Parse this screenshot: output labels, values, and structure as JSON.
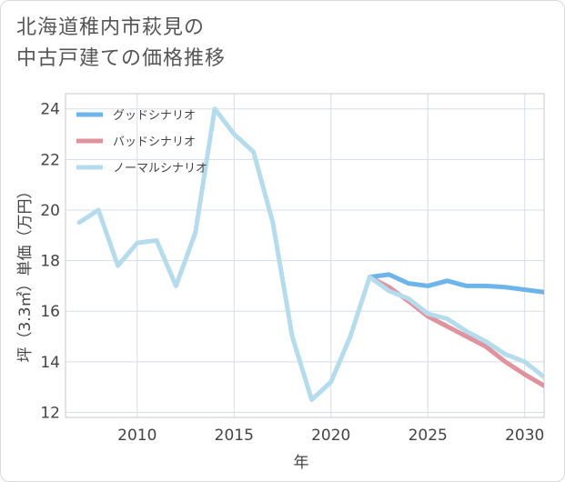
{
  "title_lines": [
    "北海道稚内市萩見の",
    "中古戸建ての価格推移"
  ],
  "chart_data": {
    "type": "line",
    "title": "北海道稚内市萩見の中古戸建ての価格推移",
    "xlabel": "年",
    "ylabel": "坪（3.3㎡）単価（万円）",
    "xlim": [
      2006.3,
      2031.0
    ],
    "ylim": [
      11.8,
      24.6
    ],
    "xticks": [
      2010,
      2015,
      2020,
      2025,
      2030
    ],
    "yticks": [
      12,
      14,
      16,
      18,
      20,
      22,
      24
    ],
    "grid": true,
    "legend_position": "top-left",
    "series": [
      {
        "name": "グッドシナリオ",
        "color": "#6cb4ea",
        "x": [
          2022,
          2023,
          2024,
          2025,
          2026,
          2027,
          2028,
          2029,
          2030,
          2031
        ],
        "y": [
          17.35,
          17.45,
          17.1,
          17.0,
          17.2,
          17.0,
          17.0,
          16.95,
          16.85,
          16.75
        ]
      },
      {
        "name": "バッドシナリオ",
        "color": "#e0939e",
        "x": [
          2022,
          2023,
          2024,
          2025,
          2026,
          2027,
          2028,
          2029,
          2030,
          2031
        ],
        "y": [
          17.35,
          16.95,
          16.4,
          15.8,
          15.4,
          15.0,
          14.6,
          14.0,
          13.5,
          13.05
        ]
      },
      {
        "name": "ノーマルシナリオ",
        "color": "#b5dcec",
        "x": [
          2007,
          2008,
          2009,
          2010,
          2011,
          2012,
          2013,
          2014,
          2015,
          2016,
          2017,
          2018,
          2019,
          2020,
          2021,
          2022,
          2023,
          2024,
          2025,
          2026,
          2027,
          2028,
          2029,
          2030,
          2031
        ],
        "y": [
          19.5,
          20.0,
          17.8,
          18.7,
          18.8,
          17.0,
          19.1,
          24.0,
          23.0,
          22.3,
          19.5,
          15.0,
          12.5,
          13.2,
          15.0,
          17.35,
          16.8,
          16.5,
          15.9,
          15.7,
          15.2,
          14.8,
          14.3,
          14.0,
          13.4
        ]
      }
    ]
  }
}
